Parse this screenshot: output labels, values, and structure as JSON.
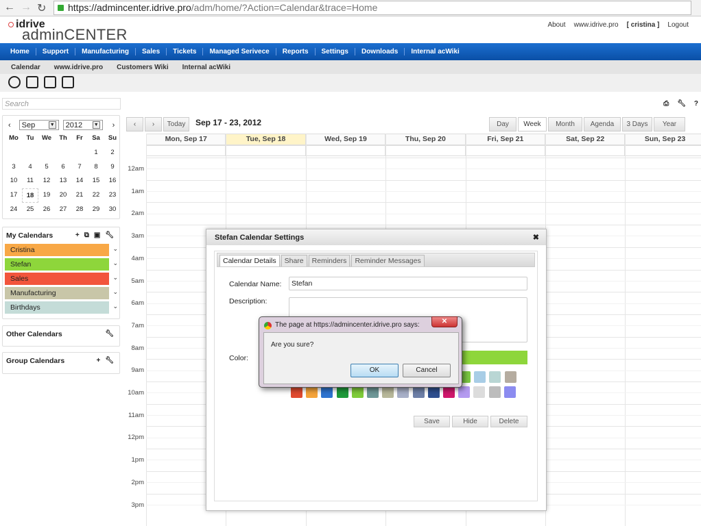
{
  "browser": {
    "url_host": "https://admincenter.idrive.pro",
    "url_path": "/adm/home/?Action=Calendar&trace=Home"
  },
  "logo": {
    "brand": "idrive",
    "product": "adminCENTER"
  },
  "toplinks": [
    "About",
    "www.idrive.pro",
    "[ cristina ]",
    "Logout"
  ],
  "nav": [
    "Home",
    "Support",
    "Manufacturing",
    "Sales",
    "Tickets",
    "Managed Serivece",
    "Reports",
    "Settings",
    "Downloads",
    "Internal acWiki"
  ],
  "subnav": [
    "Calendar",
    "www.idrive.pro",
    "Customers Wiki",
    "Internal acWiki"
  ],
  "toolicons": [
    "clock-icon",
    "calendar-icon",
    "calculator-icon",
    "list-icon"
  ],
  "search": {
    "placeholder": "Search"
  },
  "minical": {
    "month": "Sep",
    "year": "2012",
    "weekdays": [
      "Mo",
      "Tu",
      "We",
      "Th",
      "Fr",
      "Sa",
      "Su"
    ],
    "days": [
      "",
      "",
      "",
      "",
      "",
      "1",
      "2",
      "3",
      "4",
      "5",
      "6",
      "7",
      "8",
      "9",
      "10",
      "11",
      "12",
      "13",
      "14",
      "15",
      "16",
      "17",
      "18",
      "19",
      "20",
      "21",
      "22",
      "23",
      "24",
      "25",
      "26",
      "27",
      "28",
      "29",
      "30"
    ],
    "today": "18"
  },
  "my_calendars": {
    "title": "My Calendars",
    "items": [
      {
        "label": "Cristina",
        "color": "#f8a846"
      },
      {
        "label": "Stefan",
        "color": "#8ed63b"
      },
      {
        "label": "Sales",
        "color": "#f2553c"
      },
      {
        "label": "Manufacturing",
        "color": "#c8c6a8"
      },
      {
        "label": "Birthdays",
        "color": "#c4dcd8"
      }
    ]
  },
  "other_calendars": {
    "title": "Other Calendars"
  },
  "group_calendars": {
    "title": "Group Calendars"
  },
  "toolbar": {
    "prev": "‹",
    "next": "›",
    "today": "Today",
    "range": "Sep 17 - 23, 2012",
    "views": [
      "Day",
      "Week",
      "Month",
      "Agenda",
      "3 Days",
      "Year"
    ],
    "active_view": "Week"
  },
  "days": [
    {
      "label": "Mon, Sep 17"
    },
    {
      "label": "Tue, Sep 18",
      "today": true
    },
    {
      "label": "Wed, Sep 19"
    },
    {
      "label": "Thu, Sep 20"
    },
    {
      "label": "Fri, Sep 21"
    },
    {
      "label": "Sat, Sep 22"
    },
    {
      "label": "Sun, Sep 23"
    }
  ],
  "hours": [
    "12am",
    "1am",
    "2am",
    "3am",
    "4am",
    "5am",
    "6am",
    "7am",
    "8am",
    "9am",
    "10am",
    "11am",
    "12pm",
    "1pm",
    "2pm",
    "3pm"
  ],
  "modal": {
    "title": "Stefan Calendar Settings",
    "tabs": [
      "Calendar Details",
      "Share",
      "Reminders",
      "Reminder Messages"
    ],
    "name_label": "Calendar Name:",
    "name_value": "Stefan",
    "desc_label": "Description:",
    "desc_value": "",
    "color_label": "Color:",
    "selected_color": "#8ed63b",
    "colors_row1_visible": [
      "#7cc843",
      "#a8cde6",
      "#b9d6d4",
      "#b5aca0"
    ],
    "colors_row2": [
      "#e04a30",
      "#f5a43a",
      "#2f74d0",
      "#1e9a3a",
      "#80cc3a",
      "#6f9898",
      "#b8b89a",
      "#a8b0c8",
      "#6e80a8",
      "#2f4f90",
      "#d0186c",
      "#b49af0",
      "#dcdcdc",
      "#bcbcbc",
      "#8c8cf0"
    ],
    "buttons": [
      "Save",
      "Hide",
      "Delete"
    ]
  },
  "alert": {
    "title": "The page at https://admincenter.idrive.pro says:",
    "message": "Are you sure?",
    "ok": "OK",
    "cancel": "Cancel"
  }
}
